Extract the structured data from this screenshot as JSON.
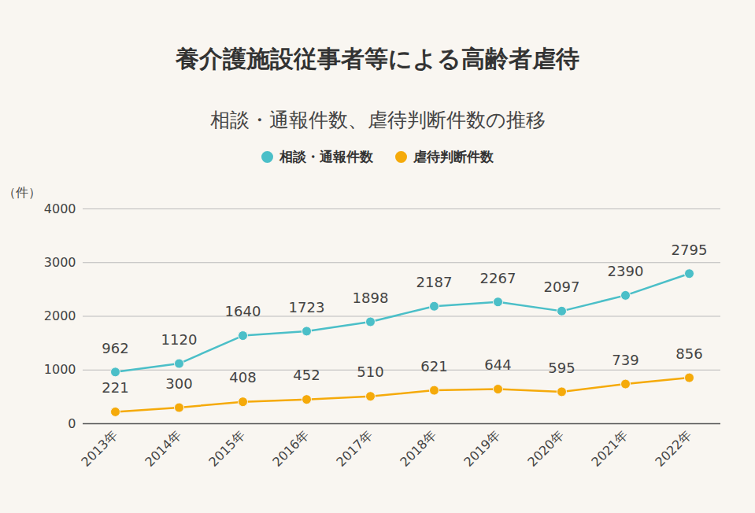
{
  "chart_data": {
    "type": "line",
    "title": "養介護施設従事者等による高齢者虐待",
    "subtitle": "相談・通報件数、虐待判断件数の推移",
    "y_label": "（件）",
    "categories": [
      "2013年",
      "2014年",
      "2015年",
      "2016年",
      "2017年",
      "2018年",
      "2019年",
      "2020年",
      "2021年",
      "2022年"
    ],
    "series": [
      {
        "name": "相談・通報件数",
        "color": "#4bbfc8",
        "marker": "circle",
        "values": [
          962,
          1120,
          1640,
          1723,
          1898,
          2187,
          2267,
          2097,
          2390,
          2795
        ]
      },
      {
        "name": "虐待判断件数",
        "color": "#f5aa0a",
        "marker": "circle",
        "values": [
          221,
          300,
          408,
          452,
          510,
          621,
          644,
          595,
          739,
          856
        ]
      }
    ],
    "ylim": [
      0,
      4000
    ],
    "yticks": [
      0,
      1000,
      2000,
      3000,
      4000
    ],
    "grid": true,
    "legend": "top",
    "data_labels": true
  }
}
